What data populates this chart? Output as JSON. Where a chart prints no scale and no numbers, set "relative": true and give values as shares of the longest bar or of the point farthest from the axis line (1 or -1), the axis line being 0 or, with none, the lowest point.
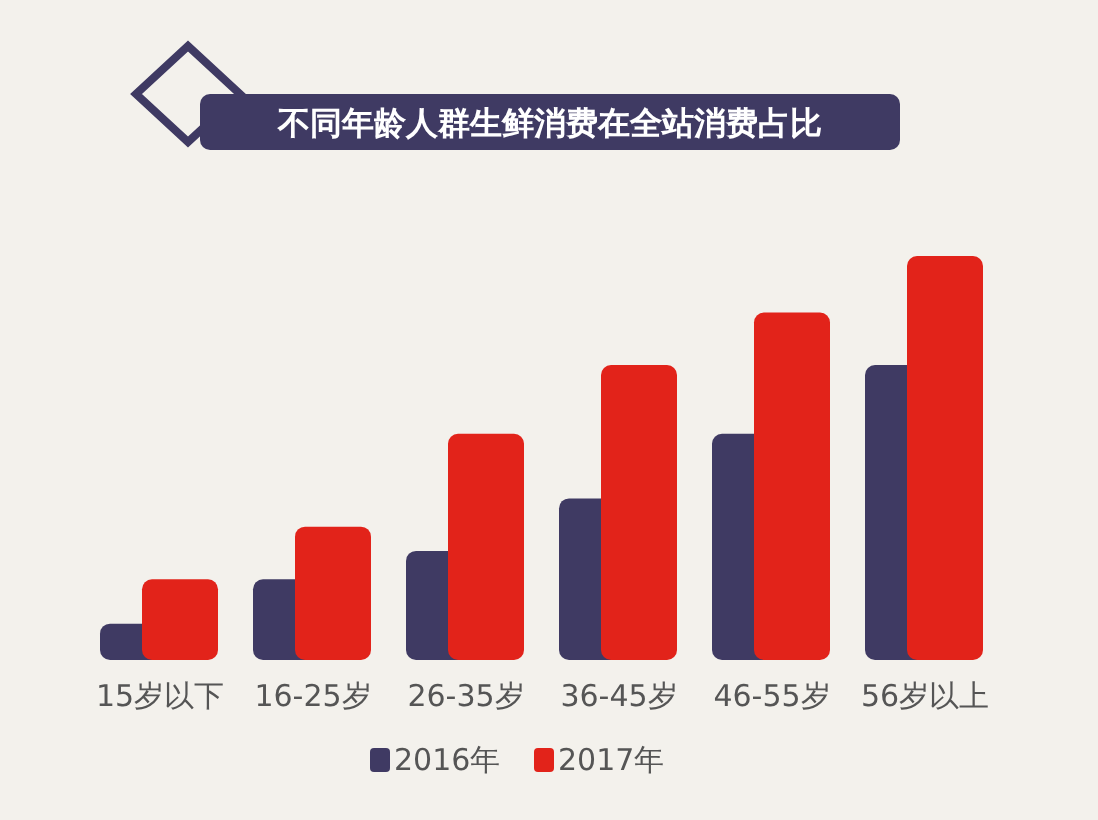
{
  "chart_data": {
    "type": "bar",
    "title": "不同年龄人群生鲜消费在全站消费占比",
    "relative": true,
    "categories": [
      "15岁以下",
      "16-25岁",
      "26-35岁",
      "36-45岁",
      "46-55岁",
      "56岁以上"
    ],
    "series": [
      {
        "name": "2016年",
        "color": "#3f3a63",
        "values": [
          0.09,
          0.2,
          0.27,
          0.4,
          0.56,
          0.73
        ]
      },
      {
        "name": "2017年",
        "color": "#e2231a",
        "values": [
          0.2,
          0.33,
          0.56,
          0.73,
          0.86,
          1
        ]
      }
    ],
    "legend": "bottom"
  }
}
